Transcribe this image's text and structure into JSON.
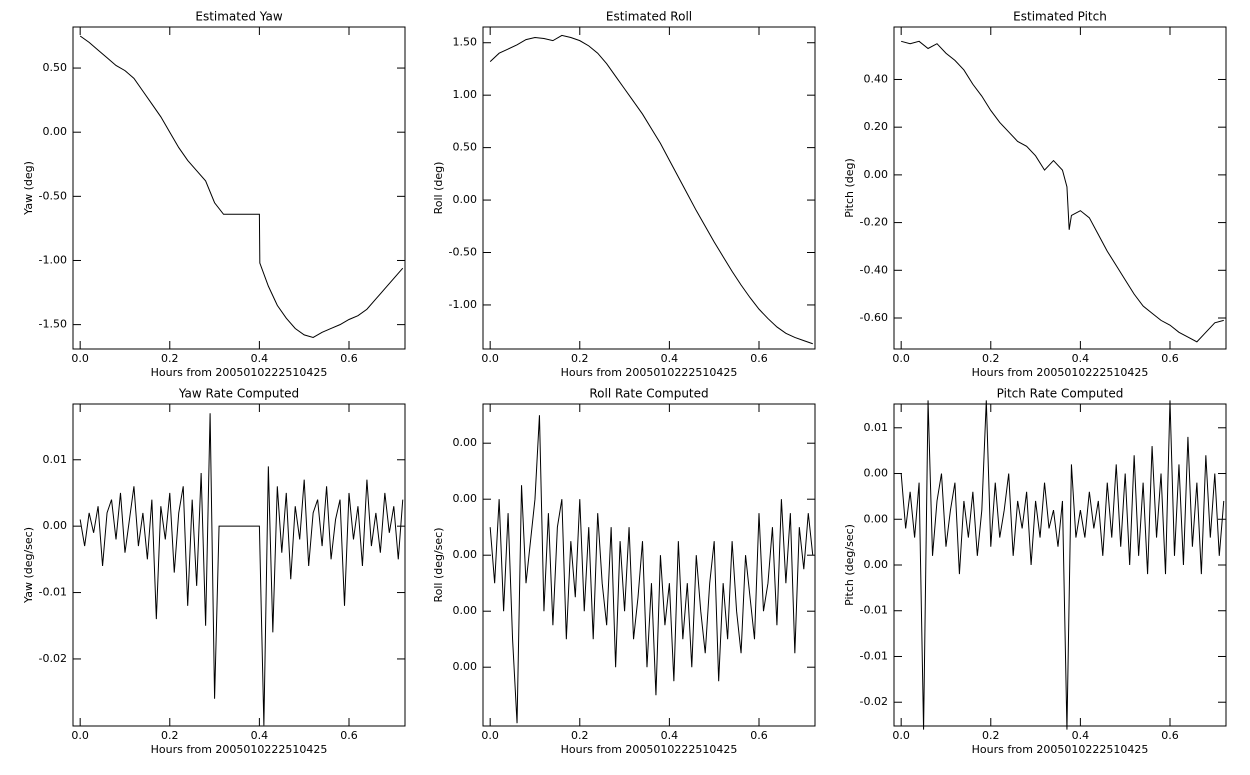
{
  "chart_data": [
    {
      "type": "line",
      "title": "Estimated Yaw",
      "x_label": "Hours from 2005010222510425",
      "y_label": "Yaw (deg)",
      "xlim": [
        -0.016,
        0.725
      ],
      "ylim": [
        -1.69,
        0.82
      ],
      "xticks": [
        {
          "value": 0,
          "label": "0.0"
        },
        {
          "value": 0.2,
          "label": "0.2"
        },
        {
          "value": 0.4,
          "label": "0.4"
        },
        {
          "value": 0.6,
          "label": "0.6"
        }
      ],
      "yticks": [
        {
          "value": 0.5,
          "label": "0.50"
        },
        {
          "value": 0,
          "label": "0.00"
        },
        {
          "value": -0.5,
          "label": "-0.50"
        },
        {
          "value": -1,
          "label": "-1.00"
        },
        {
          "value": -1.5,
          "label": "-1.50"
        }
      ],
      "color": "#000000",
      "x": [
        0,
        0.02,
        0.04,
        0.06,
        0.08,
        0.1,
        0.12,
        0.14,
        0.16,
        0.18,
        0.2,
        0.22,
        0.24,
        0.26,
        0.28,
        0.3,
        0.32,
        0.34,
        0.36,
        0.38,
        0.4,
        0.401,
        0.42,
        0.44,
        0.46,
        0.48,
        0.5,
        0.52,
        0.54,
        0.56,
        0.58,
        0.6,
        0.62,
        0.64,
        0.66,
        0.68,
        0.7,
        0.72
      ],
      "values": [
        0.75,
        0.7,
        0.64,
        0.58,
        0.52,
        0.48,
        0.42,
        0.32,
        0.22,
        0.12,
        0,
        -0.12,
        -0.22,
        -0.3,
        -0.38,
        -0.55,
        -0.64,
        -0.64,
        -0.64,
        -0.64,
        -0.64,
        -1.02,
        -1.2,
        -1.35,
        -1.45,
        -1.53,
        -1.58,
        -1.6,
        -1.56,
        -1.53,
        -1.5,
        -1.46,
        -1.43,
        -1.38,
        -1.3,
        -1.22,
        -1.14,
        -1.06
      ]
    },
    {
      "type": "line",
      "title": "Estimated Roll",
      "x_label": "Hours from 2005010222510425",
      "y_label": "Roll (deg)",
      "xlim": [
        -0.016,
        0.725
      ],
      "ylim": [
        -1.42,
        1.65
      ],
      "xticks": [
        {
          "value": 0,
          "label": "0.0"
        },
        {
          "value": 0.2,
          "label": "0.2"
        },
        {
          "value": 0.4,
          "label": "0.4"
        },
        {
          "value": 0.6,
          "label": "0.6"
        }
      ],
      "yticks": [
        {
          "value": 1.5,
          "label": "1.50"
        },
        {
          "value": 1,
          "label": "1.00"
        },
        {
          "value": 0.5,
          "label": "0.50"
        },
        {
          "value": 0,
          "label": "0.00"
        },
        {
          "value": -0.5,
          "label": "-0.50"
        },
        {
          "value": -1,
          "label": "-1.00"
        }
      ],
      "color": "#000000",
      "x": [
        0,
        0.02,
        0.04,
        0.06,
        0.08,
        0.1,
        0.12,
        0.14,
        0.16,
        0.18,
        0.2,
        0.22,
        0.24,
        0.26,
        0.28,
        0.3,
        0.32,
        0.34,
        0.36,
        0.38,
        0.4,
        0.42,
        0.44,
        0.46,
        0.48,
        0.5,
        0.52,
        0.54,
        0.56,
        0.58,
        0.6,
        0.62,
        0.64,
        0.66,
        0.68,
        0.7,
        0.72
      ],
      "values": [
        1.32,
        1.4,
        1.44,
        1.48,
        1.53,
        1.55,
        1.54,
        1.52,
        1.57,
        1.55,
        1.52,
        1.47,
        1.4,
        1.3,
        1.18,
        1.06,
        0.94,
        0.82,
        0.68,
        0.54,
        0.38,
        0.22,
        0.06,
        -0.1,
        -0.25,
        -0.4,
        -0.54,
        -0.68,
        -0.81,
        -0.93,
        -1.04,
        -1.13,
        -1.21,
        -1.27,
        -1.31,
        -1.34,
        -1.37
      ]
    },
    {
      "type": "line",
      "title": "Estimated Pitch",
      "x_label": "Hours from 2005010222510425",
      "y_label": "Pitch (deg)",
      "xlim": [
        -0.016,
        0.725
      ],
      "ylim": [
        -0.73,
        0.62
      ],
      "xticks": [
        {
          "value": 0,
          "label": "0.0"
        },
        {
          "value": 0.2,
          "label": "0.2"
        },
        {
          "value": 0.4,
          "label": "0.4"
        },
        {
          "value": 0.6,
          "label": "0.6"
        }
      ],
      "yticks": [
        {
          "value": 0.4,
          "label": "0.40"
        },
        {
          "value": 0.2,
          "label": "0.20"
        },
        {
          "value": 0,
          "label": "0.00"
        },
        {
          "value": -0.2,
          "label": "-0.20"
        },
        {
          "value": -0.4,
          "label": "-0.40"
        },
        {
          "value": -0.6,
          "label": "-0.60"
        }
      ],
      "color": "#000000",
      "x": [
        0,
        0.02,
        0.04,
        0.06,
        0.08,
        0.1,
        0.12,
        0.14,
        0.16,
        0.18,
        0.2,
        0.22,
        0.24,
        0.26,
        0.28,
        0.3,
        0.32,
        0.34,
        0.36,
        0.37,
        0.375,
        0.38,
        0.4,
        0.42,
        0.44,
        0.46,
        0.48,
        0.5,
        0.52,
        0.54,
        0.56,
        0.58,
        0.6,
        0.62,
        0.64,
        0.66,
        0.68,
        0.7,
        0.72
      ],
      "values": [
        0.56,
        0.55,
        0.56,
        0.53,
        0.55,
        0.51,
        0.48,
        0.44,
        0.38,
        0.33,
        0.27,
        0.22,
        0.18,
        0.14,
        0.12,
        0.08,
        0.02,
        0.06,
        0.02,
        -0.05,
        -0.23,
        -0.17,
        -0.15,
        -0.18,
        -0.25,
        -0.32,
        -0.38,
        -0.44,
        -0.5,
        -0.55,
        -0.58,
        -0.61,
        -0.63,
        -0.66,
        -0.68,
        -0.7,
        -0.66,
        -0.62,
        -0.61
      ]
    },
    {
      "type": "line",
      "title": "Yaw Rate Computed",
      "x_label": "Hours from 2005010222510425",
      "y_label": "Yaw (deg/sec)",
      "xlim": [
        -0.016,
        0.725
      ],
      "ylim": [
        -0.0301,
        0.0184
      ],
      "xticks": [
        {
          "value": 0,
          "label": "0.0"
        },
        {
          "value": 0.2,
          "label": "0.2"
        },
        {
          "value": 0.4,
          "label": "0.4"
        },
        {
          "value": 0.6,
          "label": "0.6"
        }
      ],
      "yticks": [
        {
          "value": 0.01,
          "label": "0.01"
        },
        {
          "value": 0,
          "label": "0.00"
        },
        {
          "value": -0.01,
          "label": "-0.01"
        },
        {
          "value": -0.02,
          "label": "-0.02"
        }
      ],
      "color": "#000000",
      "x": [
        0,
        0.01,
        0.02,
        0.03,
        0.04,
        0.05,
        0.06,
        0.07,
        0.08,
        0.09,
        0.1,
        0.11,
        0.12,
        0.13,
        0.14,
        0.15,
        0.16,
        0.17,
        0.18,
        0.19,
        0.2,
        0.21,
        0.22,
        0.23,
        0.24,
        0.25,
        0.26,
        0.27,
        0.28,
        0.29,
        0.3,
        0.31,
        0.32,
        0.33,
        0.34,
        0.35,
        0.36,
        0.37,
        0.38,
        0.39,
        0.4,
        0.41,
        0.42,
        0.43,
        0.44,
        0.45,
        0.46,
        0.47,
        0.48,
        0.49,
        0.5,
        0.51,
        0.52,
        0.53,
        0.54,
        0.55,
        0.56,
        0.57,
        0.58,
        0.59,
        0.6,
        0.61,
        0.62,
        0.63,
        0.64,
        0.65,
        0.66,
        0.67,
        0.68,
        0.69,
        0.7,
        0.71,
        0.72
      ],
      "values": [
        0.001,
        -0.003,
        0.002,
        -0.001,
        0.003,
        -0.006,
        0.002,
        0.004,
        -0.002,
        0.005,
        -0.004,
        0.001,
        0.006,
        -0.003,
        0.002,
        -0.005,
        0.004,
        -0.014,
        0.003,
        -0.002,
        0.005,
        -0.007,
        0.002,
        0.006,
        -0.012,
        0.004,
        -0.009,
        0.008,
        -0.015,
        0.017,
        -0.026,
        0,
        0,
        0,
        0,
        0,
        0,
        0,
        0,
        0,
        0,
        -0.03,
        0.009,
        -0.016,
        0.006,
        -0.004,
        0.005,
        -0.008,
        0.003,
        -0.002,
        0.007,
        -0.006,
        0.002,
        0.004,
        -0.003,
        0.006,
        -0.005,
        0.001,
        0.004,
        -0.012,
        0.005,
        -0.002,
        0.003,
        -0.006,
        0.007,
        -0.003,
        0.002,
        -0.004,
        0.005,
        -0.001,
        0.003,
        -0.005,
        0.004
      ]
    },
    {
      "type": "line",
      "title": "Roll Rate Computed",
      "x_label": "Hours from 2005010222510425",
      "y_label": "Roll (deg/sec)",
      "xlim": [
        -0.016,
        0.725
      ],
      "ylim": [
        -0.0061,
        0.0054
      ],
      "xticks": [
        {
          "value": 0,
          "label": "0.0"
        },
        {
          "value": 0.2,
          "label": "0.2"
        },
        {
          "value": 0.4,
          "label": "0.4"
        },
        {
          "value": 0.6,
          "label": "0.6"
        }
      ],
      "yticks": [
        {
          "value": 0.004,
          "label": "0.00"
        },
        {
          "value": 0.002,
          "label": "0.00"
        },
        {
          "value": 0,
          "label": "0.00"
        },
        {
          "value": -0.002,
          "label": "0.00"
        },
        {
          "value": -0.004,
          "label": "0.00"
        }
      ],
      "color": "#000000",
      "x": [
        0,
        0.01,
        0.02,
        0.03,
        0.04,
        0.05,
        0.06,
        0.07,
        0.08,
        0.09,
        0.1,
        0.11,
        0.12,
        0.13,
        0.14,
        0.15,
        0.16,
        0.17,
        0.18,
        0.19,
        0.2,
        0.21,
        0.22,
        0.23,
        0.24,
        0.25,
        0.26,
        0.27,
        0.28,
        0.29,
        0.3,
        0.31,
        0.32,
        0.33,
        0.34,
        0.35,
        0.36,
        0.37,
        0.38,
        0.39,
        0.4,
        0.41,
        0.42,
        0.43,
        0.44,
        0.45,
        0.46,
        0.47,
        0.48,
        0.49,
        0.5,
        0.51,
        0.52,
        0.53,
        0.54,
        0.55,
        0.56,
        0.57,
        0.58,
        0.59,
        0.6,
        0.61,
        0.62,
        0.63,
        0.64,
        0.65,
        0.66,
        0.67,
        0.68,
        0.69,
        0.7,
        0.71,
        0.72
      ],
      "values": [
        0.001,
        -0.001,
        0.002,
        -0.002,
        0.0015,
        -0.003,
        -0.006,
        0.0025,
        -0.001,
        0.0005,
        0.002,
        0.005,
        -0.002,
        0.0015,
        -0.0025,
        0.001,
        0.002,
        -0.003,
        0.0005,
        -0.0015,
        0.002,
        -0.002,
        0.001,
        -0.003,
        0.0015,
        -0.001,
        -0.0025,
        0.001,
        -0.004,
        0.0005,
        -0.002,
        0.001,
        -0.003,
        -0.0015,
        0.0005,
        -0.004,
        -0.001,
        -0.005,
        0,
        -0.0025,
        -0.001,
        -0.0045,
        0.0005,
        -0.003,
        -0.001,
        -0.004,
        0,
        -0.002,
        -0.0035,
        -0.001,
        0.0005,
        -0.0045,
        -0.001,
        -0.003,
        0.0005,
        -0.002,
        -0.0035,
        0,
        -0.0015,
        -0.003,
        0.0015,
        -0.002,
        -0.001,
        0.001,
        -0.0025,
        0.002,
        -0.001,
        0.0015,
        -0.0035,
        0.001,
        -0.0005,
        0.0015,
        0
      ]
    },
    {
      "type": "line",
      "title": "Pitch Rate Computed",
      "x_label": "Hours from 2005010222510425",
      "y_label": "Pitch (deg/sec)",
      "xlim": [
        -0.016,
        0.725
      ],
      "ylim": [
        -0.0226,
        0.0126
      ],
      "xticks": [
        {
          "value": 0,
          "label": "0.0"
        },
        {
          "value": 0.2,
          "label": "0.2"
        },
        {
          "value": 0.4,
          "label": "0.4"
        },
        {
          "value": 0.6,
          "label": "0.6"
        }
      ],
      "yticks": [
        {
          "value": 0.01,
          "label": "0.01"
        },
        {
          "value": 0.005,
          "label": "0.00"
        },
        {
          "value": 0,
          "label": "0.00"
        },
        {
          "value": -0.005,
          "label": "0.00"
        },
        {
          "value": -0.01,
          "label": "-0.01"
        },
        {
          "value": -0.015,
          "label": "-0.01"
        },
        {
          "value": -0.02,
          "label": "-0.02"
        }
      ],
      "color": "#000000",
      "x": [
        0,
        0.01,
        0.02,
        0.03,
        0.04,
        0.05,
        0.06,
        0.07,
        0.08,
        0.09,
        0.1,
        0.11,
        0.12,
        0.13,
        0.14,
        0.15,
        0.16,
        0.17,
        0.18,
        0.19,
        0.2,
        0.21,
        0.22,
        0.23,
        0.24,
        0.25,
        0.26,
        0.27,
        0.28,
        0.29,
        0.3,
        0.31,
        0.32,
        0.33,
        0.34,
        0.35,
        0.36,
        0.37,
        0.38,
        0.39,
        0.4,
        0.41,
        0.42,
        0.43,
        0.44,
        0.45,
        0.46,
        0.47,
        0.48,
        0.49,
        0.5,
        0.51,
        0.52,
        0.53,
        0.54,
        0.55,
        0.56,
        0.57,
        0.58,
        0.59,
        0.6,
        0.61,
        0.62,
        0.63,
        0.64,
        0.65,
        0.66,
        0.67,
        0.68,
        0.69,
        0.7,
        0.71,
        0.72
      ],
      "values": [
        0.005,
        -0.001,
        0.003,
        -0.002,
        0.004,
        -0.023,
        0.013,
        -0.004,
        0.002,
        0.005,
        -0.003,
        0.001,
        0.004,
        -0.006,
        0.002,
        -0.002,
        0.003,
        -0.004,
        0.001,
        0.013,
        -0.003,
        0.004,
        -0.002,
        0.001,
        0.005,
        -0.004,
        0.002,
        -0.001,
        0.003,
        -0.005,
        0.002,
        -0.002,
        0.004,
        -0.001,
        0.001,
        -0.003,
        0.002,
        -0.023,
        0.006,
        -0.002,
        0.001,
        -0.002,
        0.003,
        -0.001,
        0.002,
        -0.004,
        0.004,
        -0.002,
        0.006,
        -0.003,
        0.005,
        -0.005,
        0.007,
        -0.004,
        0.004,
        -0.006,
        0.008,
        -0.002,
        0.005,
        -0.006,
        0.013,
        -0.004,
        0.006,
        -0.005,
        0.009,
        -0.003,
        0.004,
        -0.006,
        0.007,
        -0.002,
        0.005,
        -0.004,
        0.002
      ]
    }
  ]
}
